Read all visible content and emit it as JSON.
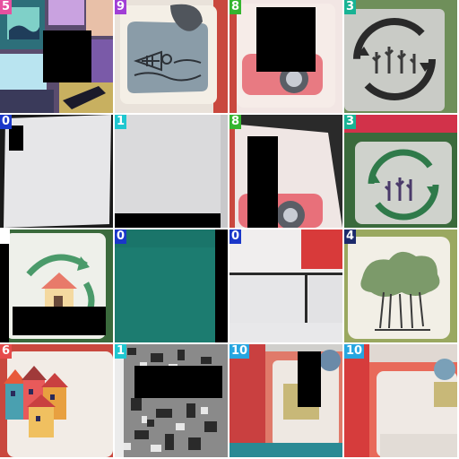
{
  "colors": {
    "badge_0": "#1a37c9",
    "badge_1": "#1fc7d0",
    "badge_3": "#18b394",
    "badge_4": "#1c2a6b",
    "badge_5": "#e6509f",
    "badge_6": "#e64b4b",
    "badge_8": "#35b52f",
    "badge_9": "#a13fd6",
    "badge_10": "#27a6e0",
    "mask": "#000000"
  },
  "tiles": [
    {
      "label": "5",
      "badge_color": "#e6509f",
      "content": "stained-glass-art"
    },
    {
      "label": "9",
      "badge_color": "#a13fd6",
      "content": "fish-skeleton-card"
    },
    {
      "label": "8",
      "badge_color": "#35b52f",
      "content": "camera-card-masked"
    },
    {
      "label": "3",
      "badge_color": "#18b394",
      "content": "cactus-recycle-card"
    },
    {
      "label": "0",
      "badge_color": "#1a37c9",
      "content": "blank-card"
    },
    {
      "label": "1",
      "badge_color": "#1fc7d0",
      "content": "blank-card"
    },
    {
      "label": "8",
      "badge_color": "#35b52f",
      "content": "camera-card-partial"
    },
    {
      "label": "3",
      "badge_color": "#18b394",
      "content": "cactus-recycle-card"
    },
    {
      "label": "",
      "badge_color": "#ffffff",
      "content": "house-recycle-card"
    },
    {
      "label": "0",
      "badge_color": "#1a37c9",
      "content": "teal-surface"
    },
    {
      "label": "0",
      "badge_color": "#1a37c9",
      "content": "card-corners"
    },
    {
      "label": "4",
      "badge_color": "#1c2a6b",
      "content": "tree-card"
    },
    {
      "label": "6",
      "badge_color": "#e64b4b",
      "content": "houses-card"
    },
    {
      "label": "1",
      "badge_color": "#1fc7d0",
      "content": "noisy-masked"
    },
    {
      "label": "10",
      "badge_color": "#27a6e0",
      "content": "red-board-masked"
    },
    {
      "label": "10",
      "badge_color": "#27a6e0",
      "content": "red-board-card"
    }
  ]
}
